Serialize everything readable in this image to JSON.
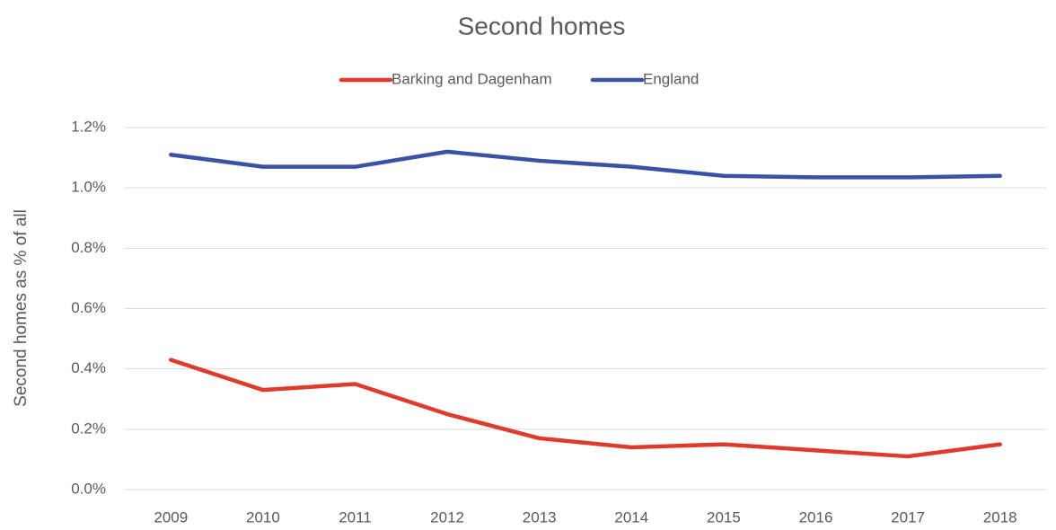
{
  "chart_data": {
    "type": "line",
    "title": "Second homes",
    "ylabel": "Second homes as % of all",
    "categories": [
      "2009",
      "2010",
      "2011",
      "2012",
      "2013",
      "2014",
      "2015",
      "2016",
      "2017",
      "2018"
    ],
    "series": [
      {
        "name": "Barking and Dagenham",
        "color": "#e03a2a",
        "values": [
          0.43,
          0.33,
          0.35,
          0.25,
          0.17,
          0.14,
          0.15,
          0.13,
          0.11,
          0.15
        ]
      },
      {
        "name": "England",
        "color": "#3a52a4",
        "values": [
          1.11,
          1.07,
          1.07,
          1.12,
          1.09,
          1.07,
          1.04,
          1.035,
          1.035,
          1.04
        ]
      }
    ],
    "ylim": [
      0,
      1.2
    ],
    "yticks": [
      {
        "value": 0,
        "label": "0.0%"
      },
      {
        "value": 0.2,
        "label": "0.2%"
      },
      {
        "value": 0.4,
        "label": "0.4%"
      },
      {
        "value": 0.6,
        "label": "0.6%"
      },
      {
        "value": 0.8,
        "label": "0.8%"
      },
      {
        "value": 1.0,
        "label": "1.0%"
      },
      {
        "value": 1.2,
        "label": "1.2%"
      }
    ],
    "grid": true,
    "legend": "top"
  }
}
